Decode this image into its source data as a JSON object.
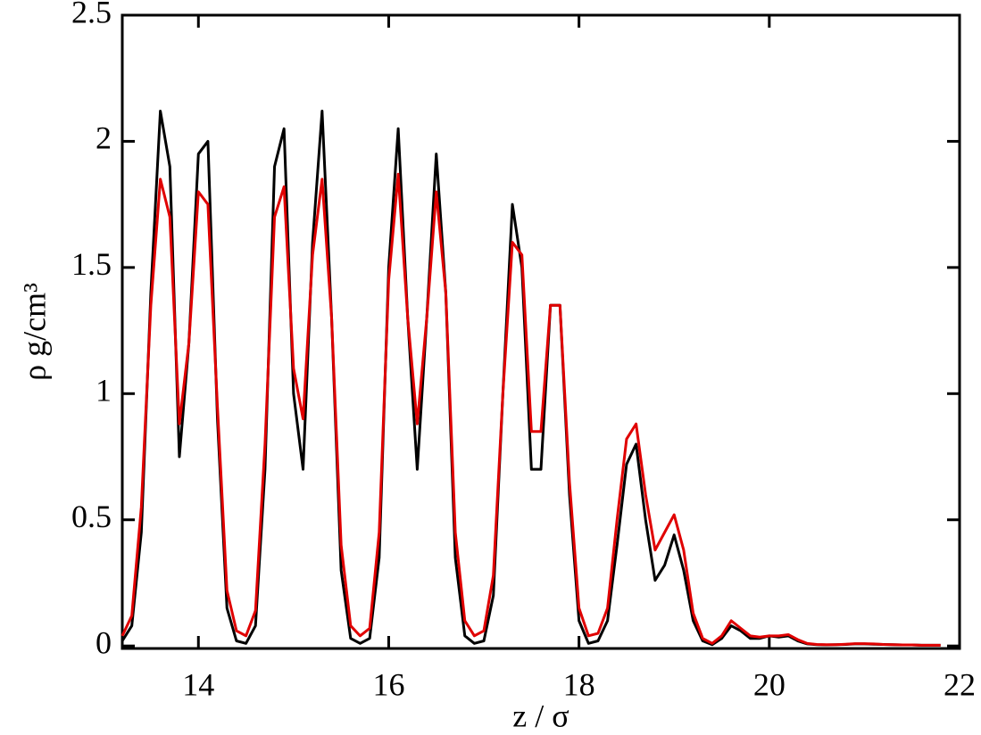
{
  "chart_data": {
    "type": "line",
    "xlabel": "z / σ",
    "ylabel": "ρ g/cm³",
    "x": [
      13.2,
      13.3,
      13.4,
      13.5,
      13.6,
      13.7,
      13.8,
      13.9,
      14.0,
      14.1,
      14.2,
      14.3,
      14.4,
      14.5,
      14.6,
      14.7,
      14.8,
      14.9,
      15.0,
      15.1,
      15.2,
      15.3,
      15.4,
      15.5,
      15.6,
      15.7,
      15.8,
      15.9,
      16.0,
      16.1,
      16.2,
      16.3,
      16.4,
      16.5,
      16.6,
      16.7,
      16.8,
      16.9,
      17.0,
      17.1,
      17.2,
      17.3,
      17.4,
      17.5,
      17.6,
      17.7,
      17.8,
      17.9,
      18.0,
      18.1,
      18.2,
      18.3,
      18.4,
      18.5,
      18.6,
      18.7,
      18.8,
      18.9,
      19.0,
      19.1,
      19.2,
      19.3,
      19.4,
      19.5,
      19.6,
      19.7,
      19.8,
      19.9,
      20.0,
      20.1,
      20.2,
      20.3,
      20.4,
      20.5,
      20.6,
      20.7,
      20.8,
      20.9,
      21.0,
      21.1,
      21.2,
      21.3,
      21.4,
      21.5,
      21.6,
      21.7,
      21.8
    ],
    "series": [
      {
        "color": "#000000",
        "values": [
          0.02,
          0.08,
          0.45,
          1.4,
          2.12,
          1.9,
          0.75,
          1.2,
          1.95,
          2.0,
          0.9,
          0.15,
          0.02,
          0.01,
          0.08,
          0.7,
          1.9,
          2.05,
          1.0,
          0.7,
          1.6,
          2.12,
          1.3,
          0.3,
          0.03,
          0.01,
          0.03,
          0.35,
          1.5,
          2.05,
          1.3,
          0.7,
          1.3,
          1.95,
          1.4,
          0.35,
          0.04,
          0.01,
          0.02,
          0.2,
          1.0,
          1.75,
          1.5,
          0.7,
          0.7,
          1.35,
          1.35,
          0.6,
          0.1,
          0.01,
          0.02,
          0.1,
          0.4,
          0.72,
          0.8,
          0.5,
          0.26,
          0.32,
          0.44,
          0.3,
          0.1,
          0.02,
          0.005,
          0.03,
          0.08,
          0.06,
          0.03,
          0.03,
          0.04,
          0.035,
          0.04,
          0.02,
          0.008,
          0.005,
          0.004,
          0.005,
          0.006,
          0.008,
          0.008,
          0.007,
          0.006,
          0.005,
          0.004,
          0.004,
          0.003,
          0.003,
          0.003
        ]
      },
      {
        "color": "#e00000",
        "values": [
          0.04,
          0.12,
          0.55,
          1.35,
          1.85,
          1.7,
          0.88,
          1.2,
          1.8,
          1.75,
          0.95,
          0.22,
          0.06,
          0.04,
          0.14,
          0.8,
          1.7,
          1.82,
          1.1,
          0.9,
          1.55,
          1.85,
          1.3,
          0.4,
          0.08,
          0.04,
          0.07,
          0.45,
          1.45,
          1.87,
          1.3,
          0.88,
          1.3,
          1.8,
          1.4,
          0.45,
          0.1,
          0.04,
          0.06,
          0.28,
          1.0,
          1.6,
          1.55,
          0.85,
          0.85,
          1.35,
          1.35,
          0.65,
          0.15,
          0.04,
          0.05,
          0.15,
          0.5,
          0.82,
          0.88,
          0.6,
          0.38,
          0.45,
          0.52,
          0.38,
          0.13,
          0.03,
          0.01,
          0.04,
          0.1,
          0.07,
          0.04,
          0.035,
          0.04,
          0.04,
          0.045,
          0.025,
          0.01,
          0.006,
          0.005,
          0.005,
          0.007,
          0.009,
          0.009,
          0.008,
          0.006,
          0.005,
          0.004,
          0.004,
          0.003,
          0.003,
          0.003
        ]
      }
    ],
    "xlim": [
      13.2,
      22
    ],
    "ylim": [
      -0.01,
      2.5
    ],
    "xticks": [
      14,
      16,
      18,
      20,
      22
    ],
    "yticks": [
      0,
      0.5,
      1,
      1.5,
      2,
      2.5
    ]
  }
}
